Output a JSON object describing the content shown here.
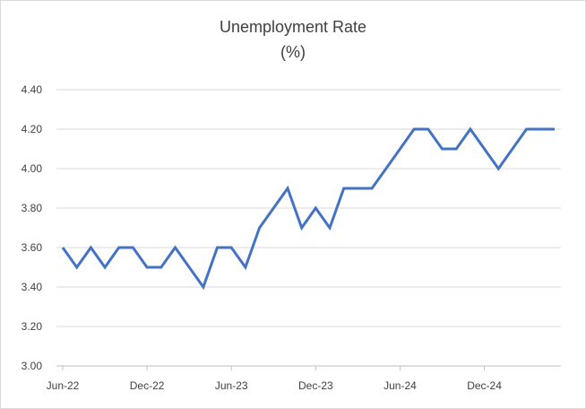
{
  "chart_data": {
    "type": "line",
    "title": "Unemployment Rate",
    "subtitle": "(%)",
    "xlabel": "",
    "ylabel": "",
    "ylim": [
      3.0,
      4.4
    ],
    "y_ticks": [
      "3.00",
      "3.20",
      "3.40",
      "3.60",
      "3.80",
      "4.00",
      "4.20",
      "4.40"
    ],
    "x_tick_labels": [
      "Jun-22",
      "Dec-22",
      "Jun-23",
      "Dec-23",
      "Jun-24",
      "Dec-24"
    ],
    "grid": true,
    "legend": "none",
    "series": [
      {
        "color": "#4472c4",
        "x": [
          "Jun-22",
          "Jul-22",
          "Aug-22",
          "Sep-22",
          "Oct-22",
          "Nov-22",
          "Dec-22",
          "Jan-23",
          "Feb-23",
          "Mar-23",
          "Apr-23",
          "May-23",
          "Jun-23",
          "Jul-23",
          "Aug-23",
          "Sep-23",
          "Oct-23",
          "Nov-23",
          "Dec-23",
          "Jan-24",
          "Feb-24",
          "Mar-24",
          "Apr-24",
          "May-24",
          "Jun-24",
          "Jul-24",
          "Aug-24",
          "Sep-24",
          "Oct-24",
          "Nov-24",
          "Dec-24",
          "Jan-25",
          "Feb-25",
          "Mar-25",
          "Apr-25",
          "May-25"
        ],
        "values": [
          3.6,
          3.5,
          3.6,
          3.5,
          3.6,
          3.6,
          3.5,
          3.5,
          3.6,
          3.5,
          3.4,
          3.6,
          3.6,
          3.5,
          3.7,
          3.8,
          3.9,
          3.7,
          3.8,
          3.7,
          3.9,
          3.9,
          3.9,
          4.0,
          4.1,
          4.2,
          4.2,
          4.1,
          4.1,
          4.2,
          4.1,
          4.0,
          4.1,
          4.2,
          4.2,
          4.2
        ]
      }
    ]
  },
  "colors": {
    "gridline": "#d9d9d9",
    "axis": "#bfbfbf",
    "text": "#404040"
  }
}
